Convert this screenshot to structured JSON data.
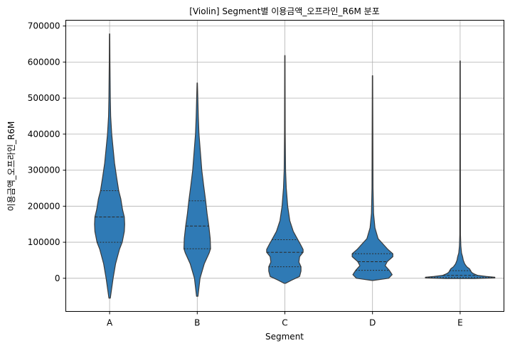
{
  "chart_data": {
    "type": "violin",
    "title": "[Violin] Segment별 이용금액_오프라인_R6M 분포",
    "xlabel": "Segment",
    "ylabel": "이용금액_오프라인_R6M",
    "ylim": [
      -92000,
      716000
    ],
    "yticks": [
      0,
      100000,
      200000,
      300000,
      400000,
      500000,
      600000,
      700000
    ],
    "grid": true,
    "color": "#2f7ab5",
    "edge_color": "#3a3a3a",
    "categories": [
      "A",
      "B",
      "C",
      "D",
      "E"
    ],
    "violins": [
      {
        "category": "A",
        "min": -55000,
        "max": 678000,
        "quartiles": [
          100000,
          170000,
          243000
        ],
        "density": [
          [
            -55000,
            0.02
          ],
          [
            0,
            0.1
          ],
          [
            40000,
            0.17
          ],
          [
            80000,
            0.28
          ],
          [
            100000,
            0.36
          ],
          [
            130000,
            0.42
          ],
          [
            150000,
            0.43
          ],
          [
            170000,
            0.42
          ],
          [
            190000,
            0.37
          ],
          [
            220000,
            0.32
          ],
          [
            243000,
            0.26
          ],
          [
            280000,
            0.2
          ],
          [
            320000,
            0.14
          ],
          [
            360000,
            0.1
          ],
          [
            400000,
            0.06
          ],
          [
            450000,
            0.03
          ],
          [
            500000,
            0.02
          ],
          [
            600000,
            0.01
          ],
          [
            678000,
            0.005
          ]
        ]
      },
      {
        "category": "B",
        "min": -50000,
        "max": 542000,
        "quartiles": [
          82000,
          145000,
          215000
        ],
        "density": [
          [
            -50000,
            0.02
          ],
          [
            0,
            0.08
          ],
          [
            40000,
            0.2
          ],
          [
            70000,
            0.34
          ],
          [
            82000,
            0.38
          ],
          [
            110000,
            0.37
          ],
          [
            145000,
            0.33
          ],
          [
            180000,
            0.28
          ],
          [
            215000,
            0.24
          ],
          [
            260000,
            0.18
          ],
          [
            300000,
            0.13
          ],
          [
            350000,
            0.09
          ],
          [
            400000,
            0.05
          ],
          [
            450000,
            0.03
          ],
          [
            542000,
            0.005
          ]
        ]
      },
      {
        "category": "C",
        "min": -14000,
        "max": 618000,
        "quartiles": [
          32000,
          72000,
          107000
        ],
        "density": [
          [
            -14000,
            0.02
          ],
          [
            -5000,
            0.2
          ],
          [
            5000,
            0.42
          ],
          [
            20000,
            0.46
          ],
          [
            32000,
            0.46
          ],
          [
            45000,
            0.4
          ],
          [
            60000,
            0.42
          ],
          [
            72000,
            0.52
          ],
          [
            80000,
            0.52
          ],
          [
            95000,
            0.44
          ],
          [
            107000,
            0.37
          ],
          [
            130000,
            0.24
          ],
          [
            160000,
            0.14
          ],
          [
            200000,
            0.08
          ],
          [
            250000,
            0.04
          ],
          [
            300000,
            0.02
          ],
          [
            400000,
            0.01
          ],
          [
            618000,
            0.005
          ]
        ]
      },
      {
        "category": "D",
        "min": -6000,
        "max": 562000,
        "quartiles": [
          22000,
          46000,
          68000
        ],
        "density": [
          [
            -6000,
            0.02
          ],
          [
            0,
            0.46
          ],
          [
            10000,
            0.56
          ],
          [
            22000,
            0.48
          ],
          [
            35000,
            0.36
          ],
          [
            46000,
            0.42
          ],
          [
            60000,
            0.58
          ],
          [
            68000,
            0.58
          ],
          [
            80000,
            0.44
          ],
          [
            95000,
            0.3
          ],
          [
            110000,
            0.16
          ],
          [
            140000,
            0.07
          ],
          [
            180000,
            0.03
          ],
          [
            250000,
            0.015
          ],
          [
            562000,
            0.005
          ]
        ]
      },
      {
        "category": "E",
        "min": -1000,
        "max": 603000,
        "quartiles": [
          2000,
          8000,
          21000
        ],
        "density": [
          [
            -1000,
            0.4
          ],
          [
            1000,
            0.99
          ],
          [
            3000,
            0.99
          ],
          [
            5000,
            0.74
          ],
          [
            8000,
            0.5
          ],
          [
            12000,
            0.4
          ],
          [
            16000,
            0.33
          ],
          [
            21000,
            0.3
          ],
          [
            26000,
            0.27
          ],
          [
            32000,
            0.19
          ],
          [
            40000,
            0.13
          ],
          [
            50000,
            0.09
          ],
          [
            60000,
            0.07
          ],
          [
            70000,
            0.04
          ],
          [
            90000,
            0.02
          ],
          [
            120000,
            0.01
          ],
          [
            603000,
            0.005
          ]
        ]
      }
    ]
  }
}
